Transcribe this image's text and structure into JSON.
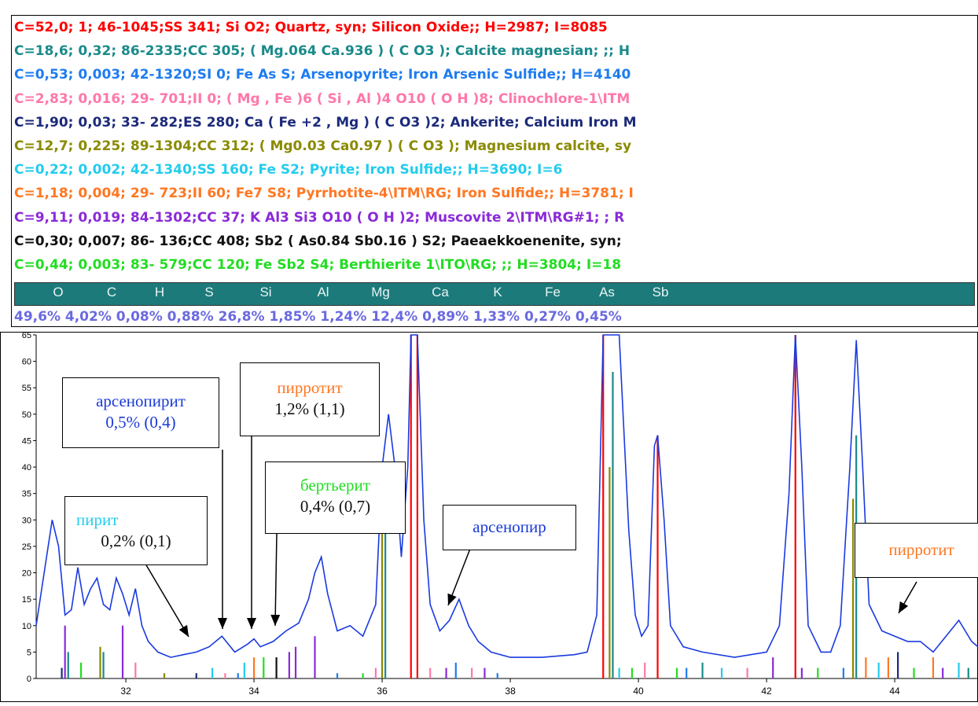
{
  "phases": [
    {
      "text": "C=52,0; 1;  46-1045;SS 341; Si O2; Quartz, syn; Silicon Oxide;; H=2987; I=8085",
      "color": "#ff0000"
    },
    {
      "text": "C=18,6; 0,32;  86-2335;CC 305; ( Mg.064 Ca.936 ) ( C O3 ); Calcite magnesian; ;; H",
      "color": "#1a8a8a"
    },
    {
      "text": "C=0,53; 0,003;  42-1320;SI 0; Fe As S; Arsenopyrite; Iron Arsenic Sulfide;; H=4140",
      "color": "#1e7cf0"
    },
    {
      "text": "C=2,83; 0,016;  29- 701;II 0; ( Mg , Fe )6 ( Si , Al )4 O10 ( O H )8; Clinochlore-1\\ITM",
      "color": "#ff77aa"
    },
    {
      "text": "C=1,90; 0,03;  33- 282;ES 280; Ca ( Fe +2 , Mg ) ( C O3 )2; Ankerite; Calcium Iron M",
      "color": "#1c2a7a"
    },
    {
      "text": "C=12,7; 0,225;  89-1304;CC 312; ( Mg0.03 Ca0.97 ) ( C O3 ); Magnesium calcite, sy",
      "color": "#8a8a00"
    },
    {
      "text": "C=0,22; 0,002;  42-1340;SS 160; Fe S2; Pyrite; Iron Sulfide;; H=3690; I=6",
      "color": "#22ccee"
    },
    {
      "text": "C=1,18; 0,004;  29- 723;II 60; Fe7 S8; Pyrrhotite-4\\ITM\\RG; Iron Sulfide;; H=3781; I",
      "color": "#ff7722"
    },
    {
      "text": "C=9,11; 0,019;  84-1302;CC 37; K Al3 Si3 O10 ( O H )2; Muscovite 2\\ITM\\RG#1; ; R",
      "color": "#8a2ad8"
    },
    {
      "text": "C=0,30; 0,007;  86- 136;CC 408; Sb2 ( As0.84 Sb0.16 ) S2; Paeaekkoenenite, syn;",
      "color": "#111111"
    },
    {
      "text": "C=0,44; 0,003;  83- 579;CC 120; Fe Sb2 S4; Berthierite 1\\ITO\\RG; ;; H=3804; I=18",
      "color": "#22dd22"
    }
  ],
  "elements": [
    "O",
    "C",
    "H",
    "S",
    "Si",
    "Al",
    "Mg",
    "Ca",
    "K",
    "Fe",
    "As",
    "Sb"
  ],
  "element_values": "49,6% 4,02% 0,08% 0,88% 26,8% 1,85% 1,24% 12,4% 0,89% 1,33% 0,27% 0,45%",
  "annotations": [
    {
      "name": "annotation-arsenopyrite",
      "title": "арсенопирит",
      "value": "0,5% (0,4)",
      "title_color": "#1a3ad8",
      "value_color": "#1a3ad8"
    },
    {
      "name": "annotation-pyrrhotite",
      "title": "пирротит",
      "value": "1,2% (1,1)",
      "title_color": "#ff7722",
      "value_color": "#111111"
    },
    {
      "name": "annotation-berthierite",
      "title": "бертьерит",
      "value": "0,4% (0,7)",
      "title_color": "#22dd22",
      "value_color": "#111111"
    },
    {
      "name": "annotation-pyrite",
      "title": "пирит",
      "value": "0,2% (0,1)",
      "title_color": "#22ccee",
      "value_color": "#111111"
    },
    {
      "name": "annotation-arsenopyrite-2",
      "title": "арсенопир",
      "value": "",
      "title_color": "#1a3ad8",
      "value_color": "#111111"
    },
    {
      "name": "annotation-pyrrhotite-2",
      "title": "пирротит",
      "value": "",
      "title_color": "#ff7722",
      "value_color": "#111111"
    }
  ],
  "chart_data": {
    "type": "line",
    "xlim": [
      30.6,
      45.3
    ],
    "ylim": [
      0,
      65
    ],
    "x_ticks": [
      "32",
      "34",
      "36",
      "38",
      "40",
      "42",
      "44"
    ],
    "y_ticks": [
      "0",
      "5",
      "10",
      "15",
      "20",
      "25",
      "30",
      "35",
      "40",
      "45",
      "50",
      "55",
      "60",
      "65"
    ],
    "pattern_color": "#1a3ae0",
    "pattern": [
      [
        30.6,
        10
      ],
      [
        30.75,
        22
      ],
      [
        30.85,
        30
      ],
      [
        30.95,
        25
      ],
      [
        31.05,
        12
      ],
      [
        31.15,
        13
      ],
      [
        31.25,
        21
      ],
      [
        31.35,
        14
      ],
      [
        31.45,
        17
      ],
      [
        31.55,
        19
      ],
      [
        31.65,
        14
      ],
      [
        31.75,
        13
      ],
      [
        31.85,
        19
      ],
      [
        31.95,
        16
      ],
      [
        32.05,
        12
      ],
      [
        32.15,
        17
      ],
      [
        32.25,
        10
      ],
      [
        32.35,
        7
      ],
      [
        32.5,
        5
      ],
      [
        32.7,
        4
      ],
      [
        32.9,
        4.5
      ],
      [
        33.1,
        5
      ],
      [
        33.3,
        6
      ],
      [
        33.5,
        8
      ],
      [
        33.7,
        5
      ],
      [
        33.9,
        6.5
      ],
      [
        34.0,
        7.5
      ],
      [
        34.1,
        6
      ],
      [
        34.3,
        7
      ],
      [
        34.5,
        9
      ],
      [
        34.7,
        10.5
      ],
      [
        34.85,
        15
      ],
      [
        34.95,
        20
      ],
      [
        35.05,
        23
      ],
      [
        35.15,
        16
      ],
      [
        35.3,
        9
      ],
      [
        35.5,
        10
      ],
      [
        35.7,
        8
      ],
      [
        35.9,
        14
      ],
      [
        36.0,
        40
      ],
      [
        36.1,
        50
      ],
      [
        36.2,
        40
      ],
      [
        36.3,
        23
      ],
      [
        36.4,
        40
      ],
      [
        36.45,
        65
      ],
      [
        36.55,
        65
      ],
      [
        36.65,
        30
      ],
      [
        36.75,
        14
      ],
      [
        36.9,
        9
      ],
      [
        37.05,
        11
      ],
      [
        37.2,
        15
      ],
      [
        37.35,
        10
      ],
      [
        37.5,
        7
      ],
      [
        37.7,
        5
      ],
      [
        38.0,
        4
      ],
      [
        38.5,
        4
      ],
      [
        39.0,
        4.5
      ],
      [
        39.2,
        5
      ],
      [
        39.35,
        12
      ],
      [
        39.45,
        65
      ],
      [
        39.7,
        65
      ],
      [
        39.85,
        28
      ],
      [
        39.95,
        12
      ],
      [
        40.05,
        8
      ],
      [
        40.15,
        10
      ],
      [
        40.25,
        44
      ],
      [
        40.3,
        46
      ],
      [
        40.4,
        30
      ],
      [
        40.5,
        10
      ],
      [
        40.7,
        6
      ],
      [
        41.0,
        5
      ],
      [
        41.5,
        4
      ],
      [
        42.0,
        5
      ],
      [
        42.2,
        10
      ],
      [
        42.35,
        35
      ],
      [
        42.45,
        65
      ],
      [
        42.55,
        40
      ],
      [
        42.65,
        10
      ],
      [
        42.85,
        5
      ],
      [
        43.0,
        5
      ],
      [
        43.15,
        10
      ],
      [
        43.3,
        40
      ],
      [
        43.4,
        64
      ],
      [
        43.5,
        40
      ],
      [
        43.6,
        14
      ],
      [
        43.8,
        9
      ],
      [
        44.0,
        8
      ],
      [
        44.2,
        7
      ],
      [
        44.4,
        7
      ],
      [
        44.6,
        5
      ],
      [
        44.8,
        8
      ],
      [
        45.0,
        11
      ],
      [
        45.2,
        7
      ],
      [
        45.3,
        6
      ]
    ],
    "sticks": [
      [
        31.0,
        2,
        "#1c2a7a"
      ],
      [
        31.05,
        10,
        "#8a2ad8"
      ],
      [
        31.1,
        5,
        "#1a8a8a"
      ],
      [
        31.3,
        3,
        "#22dd22"
      ],
      [
        31.6,
        6,
        "#8a8a00"
      ],
      [
        31.65,
        5,
        "#1a8a8a"
      ],
      [
        31.95,
        10,
        "#8a2ad8"
      ],
      [
        32.15,
        3,
        "#ff77aa"
      ],
      [
        32.6,
        1,
        "#8a8a00"
      ],
      [
        33.1,
        1,
        "#1c2a7a"
      ],
      [
        33.35,
        2,
        "#22ccee"
      ],
      [
        33.55,
        1,
        "#ff77aa"
      ],
      [
        33.75,
        1,
        "#1e7cf0"
      ],
      [
        33.85,
        3,
        "#22ccee"
      ],
      [
        34.0,
        4,
        "#ff7722"
      ],
      [
        34.15,
        4,
        "#22dd22"
      ],
      [
        34.35,
        4,
        "#111111"
      ],
      [
        34.55,
        5,
        "#8a2ad8"
      ],
      [
        34.65,
        6,
        "#8a2ad8"
      ],
      [
        34.95,
        8,
        "#8a2ad8"
      ],
      [
        35.3,
        1,
        "#1e7cf0"
      ],
      [
        35.7,
        1,
        "#22dd22"
      ],
      [
        35.9,
        2,
        "#ff77aa"
      ],
      [
        36.0,
        36,
        "#8a8a00"
      ],
      [
        36.05,
        30,
        "#1a8a8a"
      ],
      [
        36.45,
        65,
        "#ff0000"
      ],
      [
        36.55,
        65,
        "#ff0000"
      ],
      [
        36.75,
        2,
        "#ff77aa"
      ],
      [
        37.0,
        2,
        "#8a2ad8"
      ],
      [
        37.15,
        3,
        "#1e7cf0"
      ],
      [
        37.4,
        2,
        "#ff77aa"
      ],
      [
        37.6,
        2,
        "#8a2ad8"
      ],
      [
        37.8,
        1,
        "#1e7cf0"
      ],
      [
        39.45,
        65,
        "#ff0000"
      ],
      [
        39.55,
        40,
        "#8a8a00"
      ],
      [
        39.6,
        58,
        "#1a8a8a"
      ],
      [
        39.7,
        2,
        "#22ccee"
      ],
      [
        39.9,
        2,
        "#22dd22"
      ],
      [
        40.1,
        3,
        "#ff77aa"
      ],
      [
        40.3,
        46,
        "#ff0000"
      ],
      [
        40.6,
        2,
        "#22dd22"
      ],
      [
        40.75,
        2,
        "#1e7cf0"
      ],
      [
        41.0,
        3,
        "#1a8a8a"
      ],
      [
        41.3,
        2,
        "#22ccee"
      ],
      [
        41.7,
        2,
        "#ff77aa"
      ],
      [
        42.1,
        4,
        "#8a2ad8"
      ],
      [
        42.45,
        65,
        "#ff0000"
      ],
      [
        42.55,
        2,
        "#8a2ad8"
      ],
      [
        42.8,
        2,
        "#22dd22"
      ],
      [
        43.2,
        2,
        "#1e7cf0"
      ],
      [
        43.35,
        34,
        "#8a8a00"
      ],
      [
        43.4,
        46,
        "#1a8a8a"
      ],
      [
        43.55,
        4,
        "#ff7722"
      ],
      [
        43.75,
        3,
        "#22ccee"
      ],
      [
        43.9,
        4,
        "#ff7722"
      ],
      [
        44.05,
        5,
        "#1c2a7a"
      ],
      [
        44.3,
        2,
        "#22dd22"
      ],
      [
        44.6,
        4,
        "#ff7722"
      ],
      [
        44.75,
        2,
        "#8a2ad8"
      ],
      [
        45.0,
        3,
        "#22ccee"
      ],
      [
        45.15,
        2,
        "#1a8a8a"
      ]
    ]
  }
}
